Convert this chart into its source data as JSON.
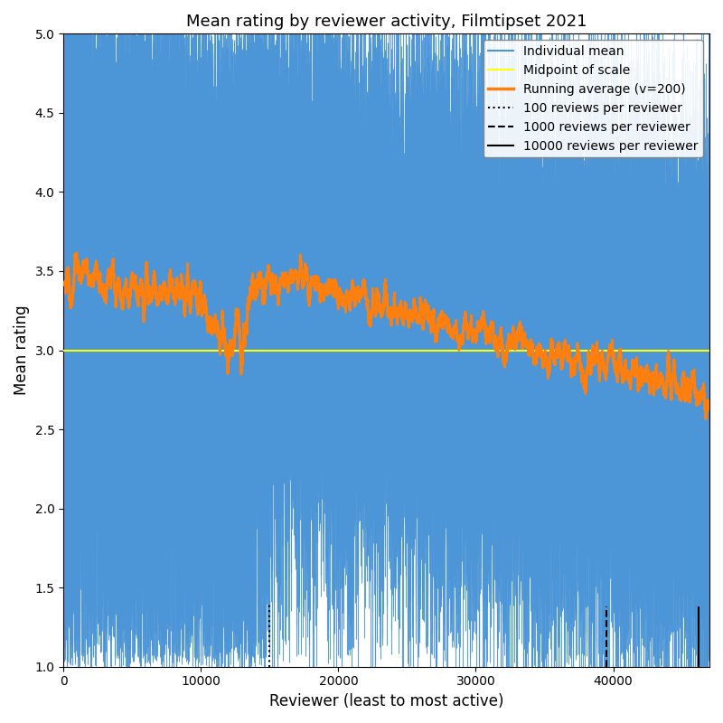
{
  "title": "Mean rating by reviewer activity, Filmtipset 2021",
  "xlabel": "Reviewer (least to most active)",
  "ylabel": "Mean rating",
  "n_reviewers": 47000,
  "ylim": [
    1.0,
    5.0
  ],
  "xlim": [
    0,
    47000
  ],
  "midpoint": 3.0,
  "running_avg_window": 200,
  "vline_100": 15000,
  "vline_1000": 39500,
  "vline_10000": 46200,
  "vline_bottom": 1.0,
  "vline_top_dotted": 1.4,
  "vline_top_dashed": 1.38,
  "vline_top_solid": 1.38,
  "color_individual": "#4C96D7",
  "color_midpoint": "#FFFF00",
  "color_running_avg": "#FF7F0E",
  "color_vlines": "black",
  "seed": 42,
  "figsize": [
    8.0,
    8.0
  ],
  "dpi": 100,
  "legend_labels": [
    "Individual mean",
    "Midpoint of scale",
    "Running average (v=200)",
    "100 reviews per reviewer",
    "1000 reviews per reviewer",
    "10000 reviews per reviewer"
  ]
}
